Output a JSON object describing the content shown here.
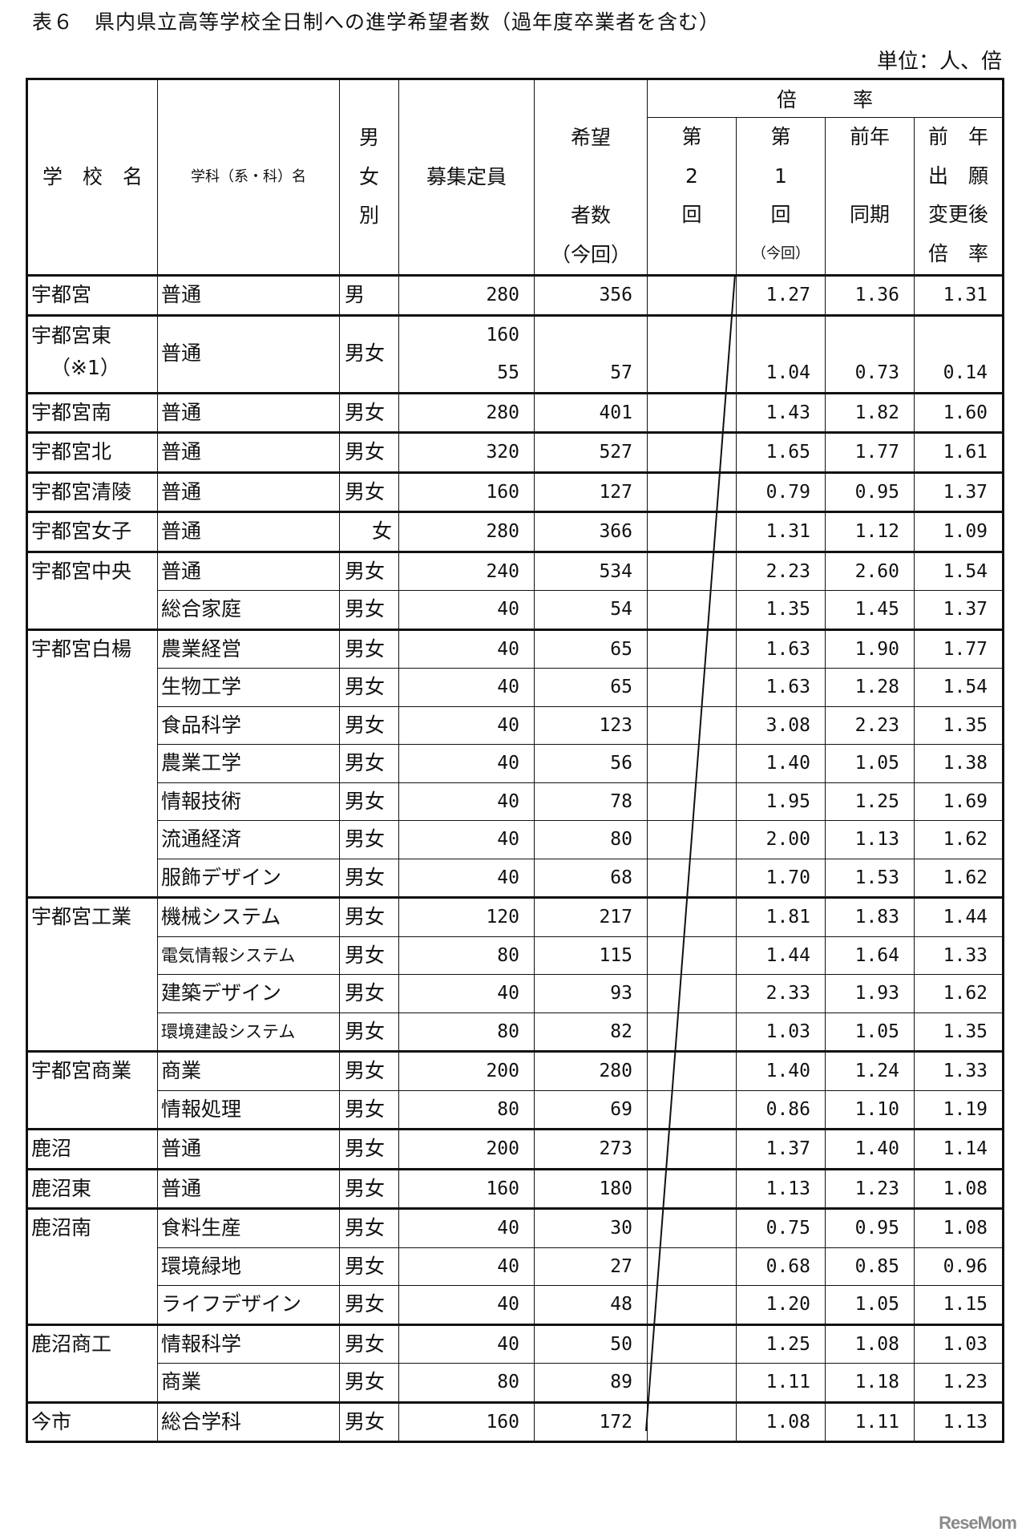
{
  "title": "表６　県内県立高等学校全日制への進学希望者数（過年度卒業者を含む）",
  "unit": "単位：人、倍",
  "header": {
    "ratio_group": "倍率",
    "columns": [
      {
        "key": "school",
        "lines": [
          "",
          "学　校　名",
          "",
          ""
        ]
      },
      {
        "key": "dept",
        "lines": [
          "",
          "学科（系・科）名",
          "",
          ""
        ]
      },
      {
        "key": "gender",
        "lines": [
          "男",
          "女",
          "別",
          ""
        ]
      },
      {
        "key": "capacity",
        "lines": [
          "",
          "募集定員",
          "",
          ""
        ]
      },
      {
        "key": "applicants",
        "lines": [
          "希望",
          "",
          "者数",
          "（今回）"
        ]
      },
      {
        "key": "ratio2",
        "lines": [
          "第",
          "2",
          "回",
          ""
        ]
      },
      {
        "key": "ratio1",
        "lines": [
          "第",
          "1",
          "回",
          "（今回）"
        ]
      },
      {
        "key": "prev",
        "lines": [
          "前年",
          "",
          "同期",
          ""
        ]
      },
      {
        "key": "prev_after",
        "lines": [
          "前　年",
          "出　願",
          "変更後",
          "倍　率"
        ]
      }
    ]
  },
  "schools": [
    {
      "name": "宇都宮",
      "rows": [
        {
          "dept": "普通",
          "gender": "男",
          "capacity": "280",
          "applicants": "356",
          "ratio2": "",
          "ratio1": "1.27",
          "prev": "1.36",
          "prev_after": "1.31"
        }
      ]
    },
    {
      "name": "宇都宮東",
      "note": "（※1）",
      "rows": [
        {
          "dept": "普通",
          "gender": "男女",
          "capacity": "160",
          "capacity2": "55",
          "applicants": "57",
          "ratio2": "",
          "ratio1": "1.04",
          "prev": "0.73",
          "prev_after": "0.14"
        }
      ]
    },
    {
      "name": "宇都宮南",
      "rows": [
        {
          "dept": "普通",
          "gender": "男女",
          "capacity": "280",
          "applicants": "401",
          "ratio2": "",
          "ratio1": "1.43",
          "prev": "1.82",
          "prev_after": "1.60"
        }
      ]
    },
    {
      "name": "宇都宮北",
      "rows": [
        {
          "dept": "普通",
          "gender": "男女",
          "capacity": "320",
          "applicants": "527",
          "ratio2": "",
          "ratio1": "1.65",
          "prev": "1.77",
          "prev_after": "1.61"
        }
      ]
    },
    {
      "name": "宇都宮清陵",
      "rows": [
        {
          "dept": "普通",
          "gender": "男女",
          "capacity": "160",
          "applicants": "127",
          "ratio2": "",
          "ratio1": "0.79",
          "prev": "0.95",
          "prev_after": "1.37"
        }
      ]
    },
    {
      "name": "宇都宮女子",
      "rows": [
        {
          "dept": "普通",
          "gender": "女",
          "capacity": "280",
          "applicants": "366",
          "ratio2": "",
          "ratio1": "1.31",
          "prev": "1.12",
          "prev_after": "1.09"
        }
      ]
    },
    {
      "name": "宇都宮中央",
      "rows": [
        {
          "dept": "普通",
          "gender": "男女",
          "capacity": "240",
          "applicants": "534",
          "ratio2": "",
          "ratio1": "2.23",
          "prev": "2.60",
          "prev_after": "1.54"
        },
        {
          "dept": "総合家庭",
          "gender": "男女",
          "capacity": "40",
          "applicants": "54",
          "ratio2": "",
          "ratio1": "1.35",
          "prev": "1.45",
          "prev_after": "1.37"
        }
      ]
    },
    {
      "name": "宇都宮白楊",
      "rows": [
        {
          "dept": "農業経営",
          "gender": "男女",
          "capacity": "40",
          "applicants": "65",
          "ratio2": "",
          "ratio1": "1.63",
          "prev": "1.90",
          "prev_after": "1.77"
        },
        {
          "dept": "生物工学",
          "gender": "男女",
          "capacity": "40",
          "applicants": "65",
          "ratio2": "",
          "ratio1": "1.63",
          "prev": "1.28",
          "prev_after": "1.54"
        },
        {
          "dept": "食品科学",
          "gender": "男女",
          "capacity": "40",
          "applicants": "123",
          "ratio2": "",
          "ratio1": "3.08",
          "prev": "2.23",
          "prev_after": "1.35"
        },
        {
          "dept": "農業工学",
          "gender": "男女",
          "capacity": "40",
          "applicants": "56",
          "ratio2": "",
          "ratio1": "1.40",
          "prev": "1.05",
          "prev_after": "1.38"
        },
        {
          "dept": "情報技術",
          "gender": "男女",
          "capacity": "40",
          "applicants": "78",
          "ratio2": "",
          "ratio1": "1.95",
          "prev": "1.25",
          "prev_after": "1.69"
        },
        {
          "dept": "流通経済",
          "gender": "男女",
          "capacity": "40",
          "applicants": "80",
          "ratio2": "",
          "ratio1": "2.00",
          "prev": "1.13",
          "prev_after": "1.62"
        },
        {
          "dept": "服飾デザイン",
          "gender": "男女",
          "capacity": "40",
          "applicants": "68",
          "ratio2": "",
          "ratio1": "1.70",
          "prev": "1.53",
          "prev_after": "1.62"
        }
      ]
    },
    {
      "name": "宇都宮工業",
      "rows": [
        {
          "dept": "機械システム",
          "gender": "男女",
          "capacity": "120",
          "applicants": "217",
          "ratio2": "",
          "ratio1": "1.81",
          "prev": "1.83",
          "prev_after": "1.44"
        },
        {
          "dept": "電気情報システム",
          "gender": "男女",
          "capacity": "80",
          "applicants": "115",
          "ratio2": "",
          "ratio1": "1.44",
          "prev": "1.64",
          "prev_after": "1.33"
        },
        {
          "dept": "建築デザイン",
          "gender": "男女",
          "capacity": "40",
          "applicants": "93",
          "ratio2": "",
          "ratio1": "2.33",
          "prev": "1.93",
          "prev_after": "1.62"
        },
        {
          "dept": "環境建設システム",
          "gender": "男女",
          "capacity": "80",
          "applicants": "82",
          "ratio2": "",
          "ratio1": "1.03",
          "prev": "1.05",
          "prev_after": "1.35"
        }
      ]
    },
    {
      "name": "宇都宮商業",
      "rows": [
        {
          "dept": "商業",
          "gender": "男女",
          "capacity": "200",
          "applicants": "280",
          "ratio2": "",
          "ratio1": "1.40",
          "prev": "1.24",
          "prev_after": "1.33"
        },
        {
          "dept": "情報処理",
          "gender": "男女",
          "capacity": "80",
          "applicants": "69",
          "ratio2": "",
          "ratio1": "0.86",
          "prev": "1.10",
          "prev_after": "1.19"
        }
      ]
    },
    {
      "name": "鹿沼",
      "rows": [
        {
          "dept": "普通",
          "gender": "男女",
          "capacity": "200",
          "applicants": "273",
          "ratio2": "",
          "ratio1": "1.37",
          "prev": "1.40",
          "prev_after": "1.14"
        }
      ]
    },
    {
      "name": "鹿沼東",
      "rows": [
        {
          "dept": "普通",
          "gender": "男女",
          "capacity": "160",
          "applicants": "180",
          "ratio2": "",
          "ratio1": "1.13",
          "prev": "1.23",
          "prev_after": "1.08"
        }
      ]
    },
    {
      "name": "鹿沼南",
      "rows": [
        {
          "dept": "食料生産",
          "gender": "男女",
          "capacity": "40",
          "applicants": "30",
          "ratio2": "",
          "ratio1": "0.75",
          "prev": "0.95",
          "prev_after": "1.08"
        },
        {
          "dept": "環境緑地",
          "gender": "男女",
          "capacity": "40",
          "applicants": "27",
          "ratio2": "",
          "ratio1": "0.68",
          "prev": "0.85",
          "prev_after": "0.96"
        },
        {
          "dept": "ライフデザイン",
          "gender": "男女",
          "capacity": "40",
          "applicants": "48",
          "ratio2": "",
          "ratio1": "1.20",
          "prev": "1.05",
          "prev_after": "1.15"
        }
      ]
    },
    {
      "name": "鹿沼商工",
      "rows": [
        {
          "dept": "情報科学",
          "gender": "男女",
          "capacity": "40",
          "applicants": "50",
          "ratio2": "",
          "ratio1": "1.25",
          "prev": "1.08",
          "prev_after": "1.03"
        },
        {
          "dept": "商業",
          "gender": "男女",
          "capacity": "80",
          "applicants": "89",
          "ratio2": "",
          "ratio1": "1.11",
          "prev": "1.18",
          "prev_after": "1.23"
        }
      ]
    },
    {
      "name": "今市",
      "rows": [
        {
          "dept": "総合学科",
          "gender": "男女",
          "capacity": "160",
          "applicants": "172",
          "ratio2": "",
          "ratio1": "1.08",
          "prev": "1.11",
          "prev_after": "1.13"
        }
      ]
    }
  ],
  "watermark": "ReseMom"
}
